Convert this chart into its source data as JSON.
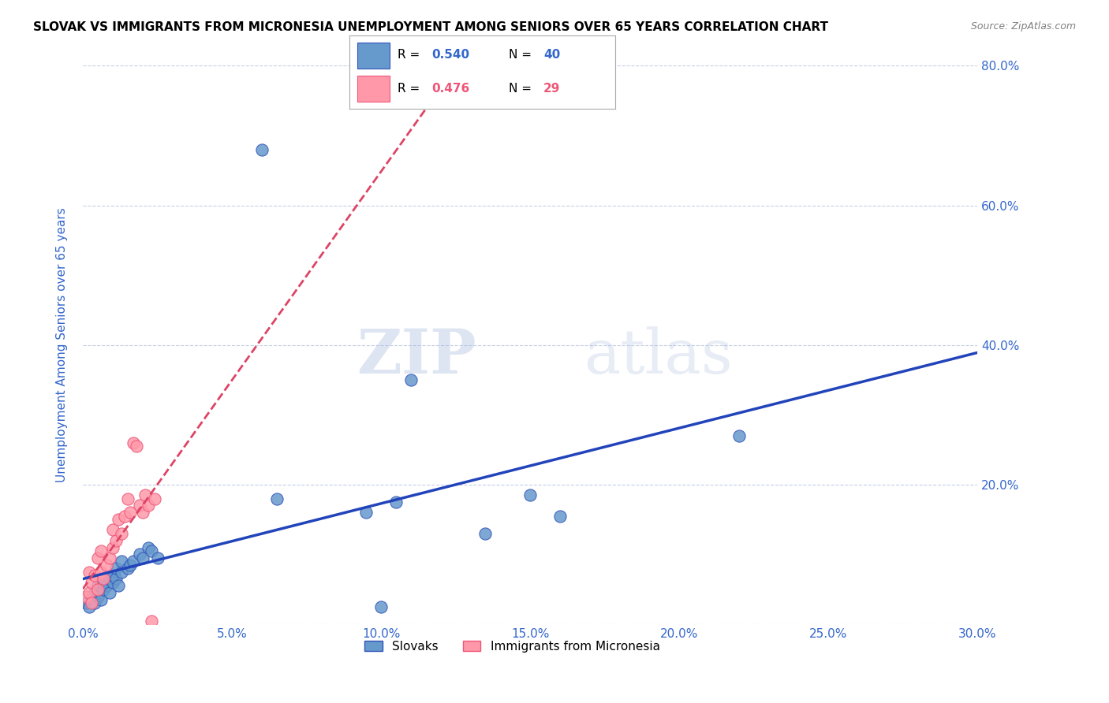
{
  "title": "SLOVAK VS IMMIGRANTS FROM MICRONESIA UNEMPLOYMENT AMONG SENIORS OVER 65 YEARS CORRELATION CHART",
  "source": "Source: ZipAtlas.com",
  "ylabel": "Unemployment Among Seniors over 65 years",
  "xlim": [
    0.0,
    0.3
  ],
  "ylim": [
    0.0,
    0.8
  ],
  "xticks": [
    0.0,
    0.05,
    0.1,
    0.15,
    0.2,
    0.25,
    0.3
  ],
  "yticks": [
    0.0,
    0.2,
    0.4,
    0.6,
    0.8
  ],
  "xtick_labels": [
    "0.0%",
    "5.0%",
    "10.0%",
    "15.0%",
    "20.0%",
    "25.0%",
    "30.0%"
  ],
  "ytick_labels_right": [
    "",
    "20.0%",
    "40.0%",
    "60.0%",
    "80.0%"
  ],
  "legend1_label": "Slovaks",
  "legend2_label": "Immigrants from Micronesia",
  "R1": 0.54,
  "N1": 40,
  "R2": 0.476,
  "N2": 29,
  "color_blue": "#6699CC",
  "color_pink": "#FF99AA",
  "color_blue_dark": "#3355BB",
  "color_pink_dark": "#EE5577",
  "color_text": "#3366CC",
  "watermark_zip": "ZIP",
  "watermark_atlas": "atlas",
  "blue_x": [
    0.001,
    0.002,
    0.003,
    0.003,
    0.004,
    0.004,
    0.005,
    0.005,
    0.006,
    0.006,
    0.007,
    0.007,
    0.008,
    0.009,
    0.009,
    0.01,
    0.01,
    0.011,
    0.011,
    0.012,
    0.013,
    0.013,
    0.015,
    0.016,
    0.017,
    0.019,
    0.02,
    0.022,
    0.023,
    0.025,
    0.06,
    0.065,
    0.095,
    0.1,
    0.105,
    0.11,
    0.135,
    0.15,
    0.16,
    0.22
  ],
  "blue_y": [
    0.03,
    0.025,
    0.04,
    0.035,
    0.045,
    0.03,
    0.055,
    0.04,
    0.055,
    0.035,
    0.05,
    0.06,
    0.055,
    0.065,
    0.045,
    0.06,
    0.07,
    0.065,
    0.08,
    0.055,
    0.075,
    0.09,
    0.08,
    0.085,
    0.09,
    0.1,
    0.095,
    0.11,
    0.105,
    0.095,
    0.68,
    0.18,
    0.16,
    0.025,
    0.175,
    0.35,
    0.13,
    0.185,
    0.155,
    0.27
  ],
  "pink_x": [
    0.001,
    0.002,
    0.002,
    0.003,
    0.003,
    0.004,
    0.005,
    0.005,
    0.006,
    0.006,
    0.007,
    0.008,
    0.009,
    0.01,
    0.01,
    0.011,
    0.012,
    0.013,
    0.014,
    0.015,
    0.016,
    0.017,
    0.018,
    0.019,
    0.02,
    0.021,
    0.022,
    0.023,
    0.024
  ],
  "pink_y": [
    0.04,
    0.045,
    0.075,
    0.03,
    0.06,
    0.07,
    0.05,
    0.095,
    0.075,
    0.105,
    0.065,
    0.085,
    0.095,
    0.11,
    0.135,
    0.12,
    0.15,
    0.13,
    0.155,
    0.18,
    0.16,
    0.26,
    0.255,
    0.17,
    0.16,
    0.185,
    0.17,
    0.005,
    0.18
  ]
}
